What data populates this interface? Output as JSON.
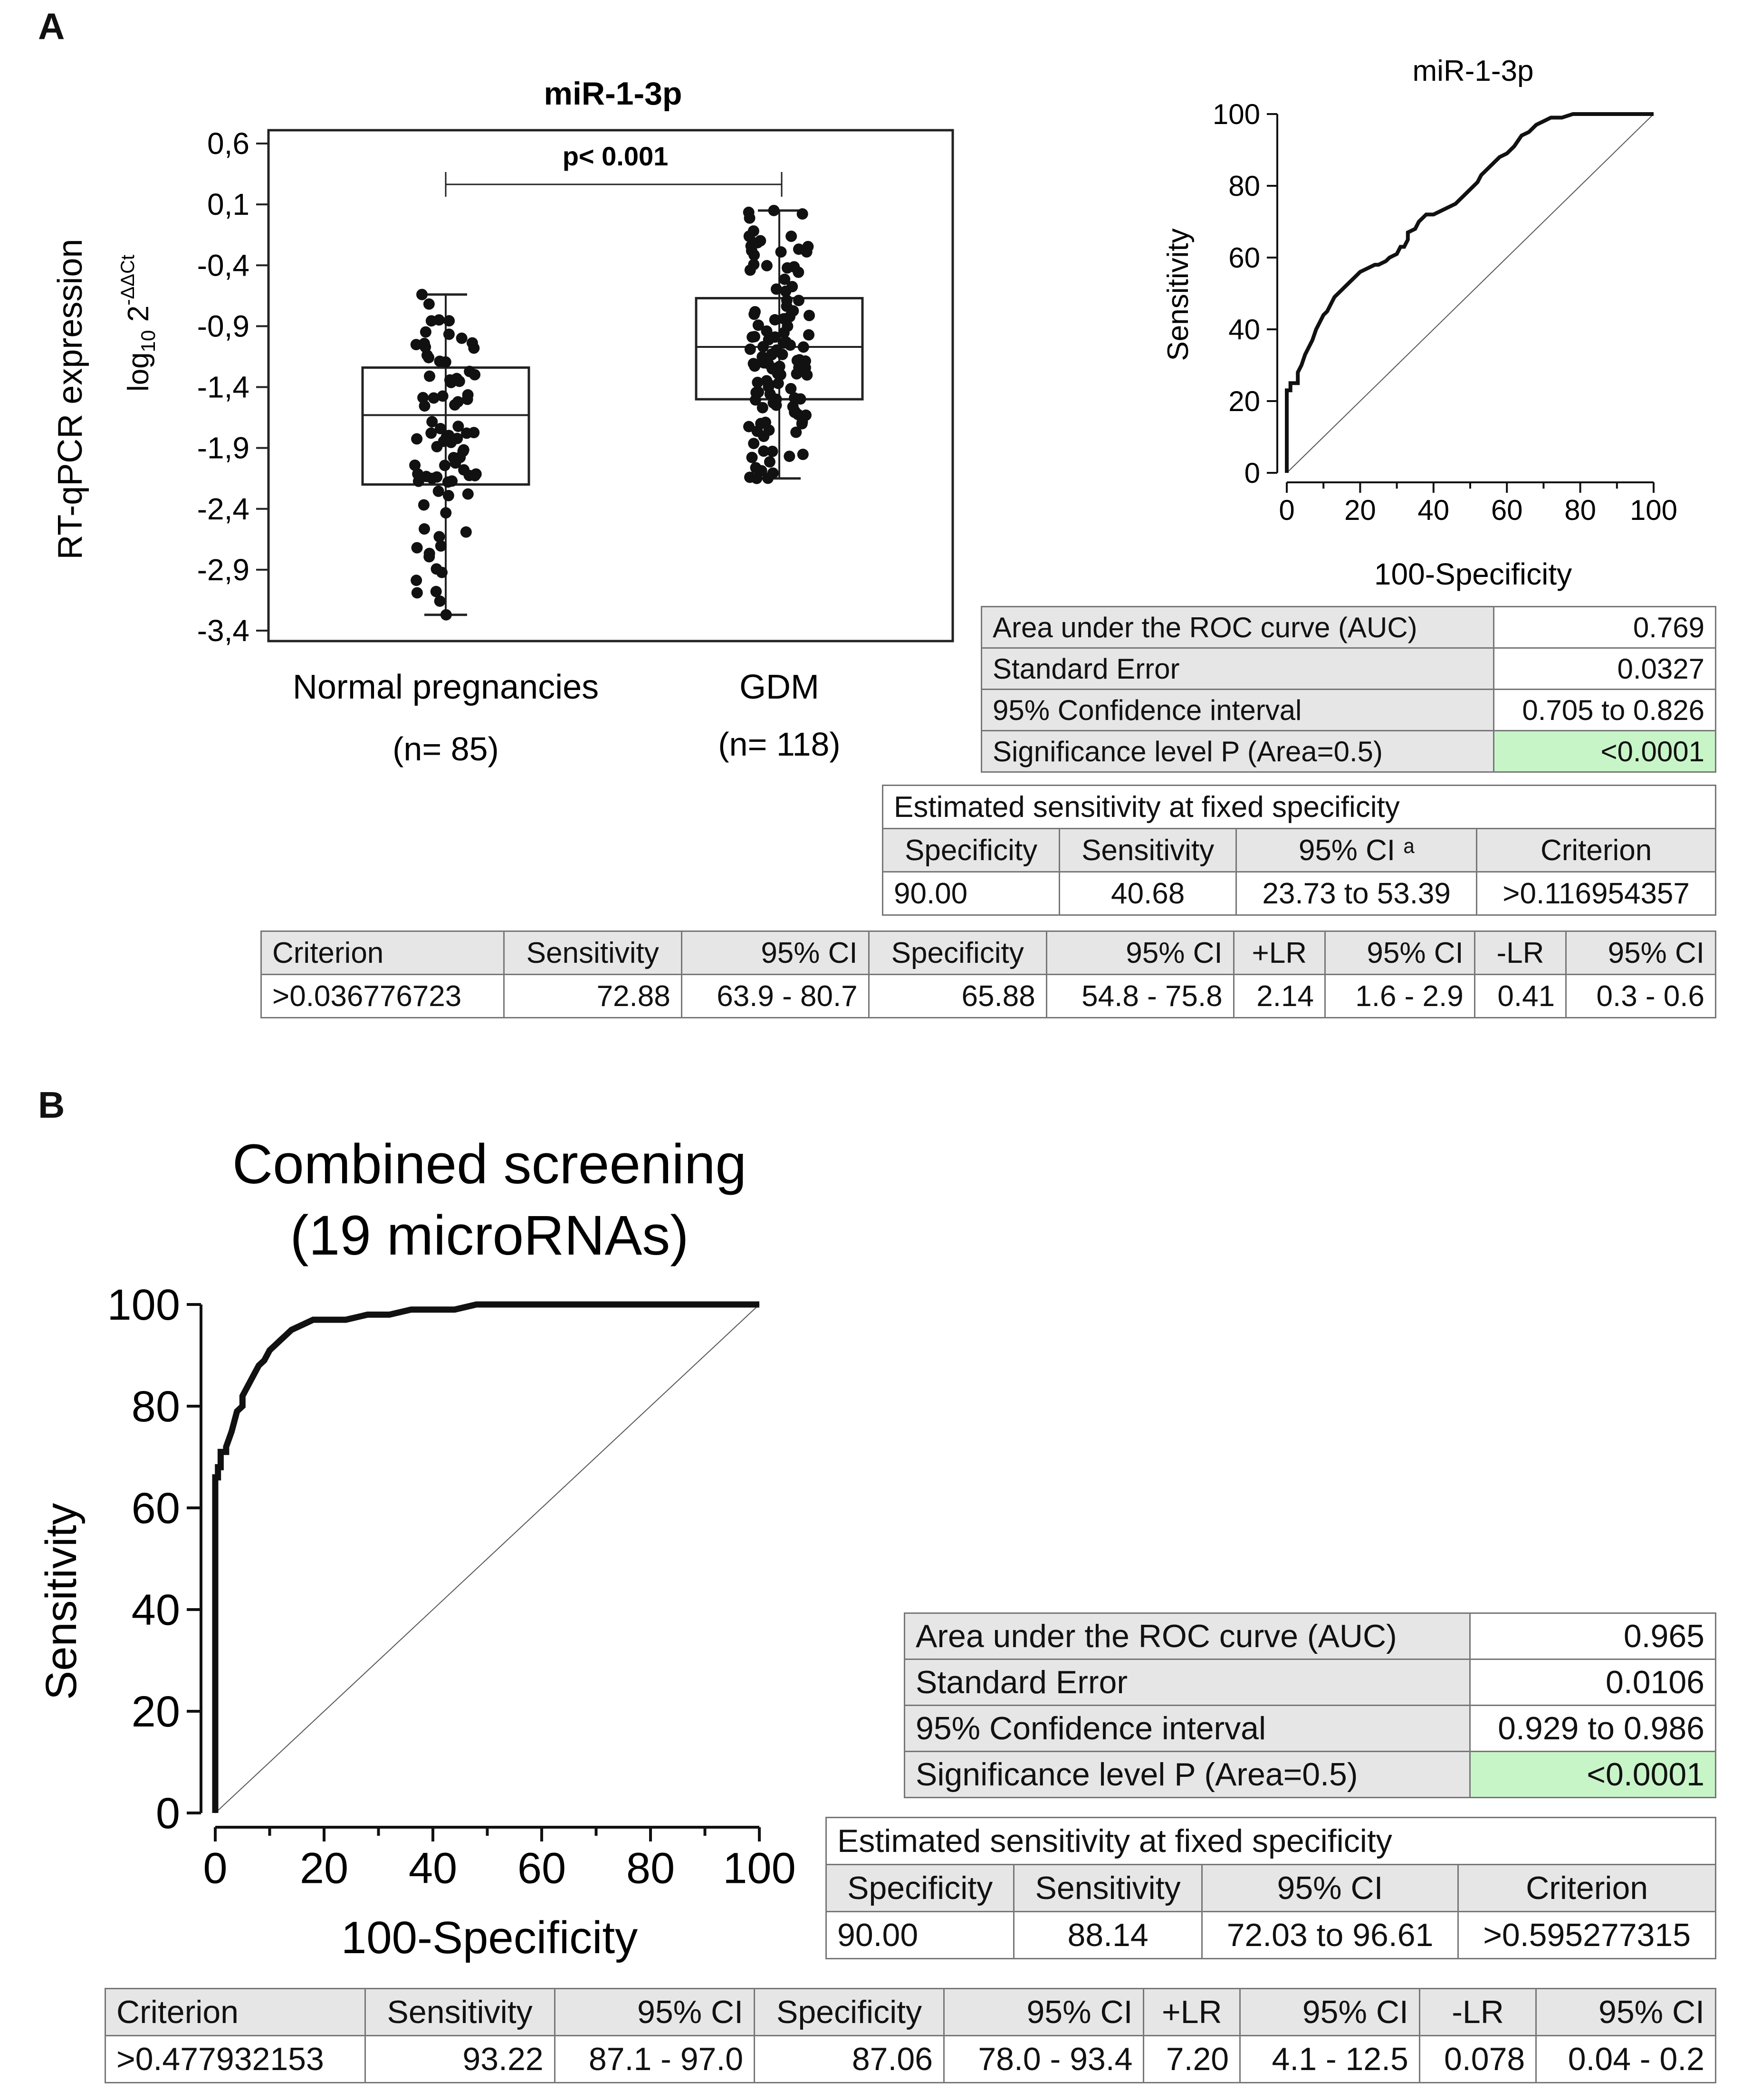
{
  "panels": {
    "a": "A",
    "b": "B"
  },
  "chart_data": [
    {
      "type": "box",
      "title": "miR-1-3p",
      "ylabel_main": "RT-qPCR expression",
      "ylabel_sub": "log10 2^-ΔΔCt",
      "yticks": [
        "0,6",
        "0,1",
        "-0,4",
        "-0,9",
        "-1,4",
        "-1,9",
        "-2,4",
        "-2,9",
        "-3,4"
      ],
      "ylim": [
        -3.4,
        0.6
      ],
      "annotation": "p< 0.001",
      "groups": [
        {
          "label": "Normal pregnancies",
          "n": "(n= 85)",
          "min": -3.27,
          "q1": -2.2,
          "median": -1.63,
          "q3": -1.24,
          "max": -0.64,
          "count": 85
        },
        {
          "label": "GDM",
          "n": "(n= 118)",
          "min": -2.15,
          "q1": -1.5,
          "median": -1.07,
          "q3": -0.67,
          "max": 0.05,
          "count": 118
        }
      ]
    },
    {
      "type": "line",
      "title": "miR-1-3p",
      "xlabel": "100-Specificity",
      "ylabel": "Sensitivity",
      "xticks": [
        "0",
        "20",
        "40",
        "60",
        "80",
        "100"
      ],
      "yticks": [
        "0",
        "20",
        "40",
        "60",
        "80",
        "100"
      ],
      "xlim": [
        0,
        100
      ],
      "ylim": [
        0,
        100
      ],
      "x": [
        0,
        0,
        1,
        1,
        3,
        3,
        4,
        5,
        6,
        7,
        8,
        9,
        10,
        11,
        12,
        13,
        14,
        15,
        16,
        18,
        20,
        22,
        24,
        25,
        27,
        28,
        30,
        31,
        32,
        33,
        33,
        35,
        36,
        38,
        39,
        40,
        42,
        44,
        46,
        48,
        50,
        52,
        53,
        55,
        58,
        60,
        62,
        64,
        66,
        68,
        70,
        72,
        75,
        78,
        82,
        86,
        90,
        94,
        100
      ],
      "y": [
        0,
        23,
        23,
        25,
        25,
        28,
        30,
        33,
        35,
        37,
        40,
        42,
        44,
        45,
        47,
        49,
        50,
        51,
        52,
        54,
        56,
        57,
        58,
        58,
        59,
        60,
        61,
        63,
        63,
        65,
        67,
        68,
        70,
        72,
        72,
        72,
        73,
        74,
        75,
        77,
        79,
        81,
        83,
        85,
        88,
        89,
        91,
        94,
        95,
        97,
        98,
        99,
        99,
        100,
        100,
        100,
        100,
        100,
        100
      ],
      "reference_line": true
    },
    {
      "type": "line",
      "title": "Combined screening",
      "title2": "(19 microRNAs)",
      "xlabel": "100-Specificity",
      "ylabel": "Sensitivity",
      "xticks": [
        "0",
        "20",
        "40",
        "60",
        "80",
        "100"
      ],
      "yticks": [
        "0",
        "20",
        "40",
        "60",
        "80",
        "100"
      ],
      "xlim": [
        0,
        100
      ],
      "ylim": [
        0,
        100
      ],
      "x": [
        0,
        0,
        0.5,
        0.5,
        1,
        1,
        2,
        2,
        3,
        4,
        5,
        5,
        6,
        7,
        8,
        9,
        10,
        11,
        12,
        13,
        14,
        16,
        18,
        20,
        24,
        28,
        32,
        36,
        40,
        44,
        48,
        52,
        56,
        60,
        70,
        80,
        90,
        100
      ],
      "y": [
        0,
        66,
        66,
        68,
        68,
        71,
        71,
        72,
        75,
        79,
        80,
        82,
        84,
        86,
        88,
        89,
        91,
        92,
        93,
        94,
        95,
        96,
        97,
        97,
        97,
        98,
        98,
        99,
        99,
        99,
        100,
        100,
        100,
        100,
        100,
        100,
        100,
        100
      ],
      "reference_line": true
    }
  ],
  "tables": {
    "a_auc": {
      "rows": [
        {
          "label": "Area under the ROC curve (AUC)",
          "value": "0.769"
        },
        {
          "label": "Standard Error",
          "value": "0.0327"
        },
        {
          "label": "95% Confidence interval",
          "value": "0.705 to 0.826"
        },
        {
          "label": "Significance level P (Area=0.5)",
          "value": "<0.0001"
        }
      ]
    },
    "a_fixed": {
      "title": "Estimated sensitivity at fixed specificity",
      "headers": [
        "Specificity",
        "Sensitivity",
        "95% CI ᵃ",
        "Criterion"
      ],
      "values": [
        "90.00",
        "40.68",
        "23.73 to 53.39",
        ">0.116954357"
      ]
    },
    "a_crit": {
      "headers": [
        "Criterion",
        "Sensitivity",
        "95% CI",
        "Specificity",
        "95% CI",
        "+LR",
        "95% CI",
        "-LR",
        "95% CI"
      ],
      "values": [
        ">0.036776723",
        "72.88",
        "63.9 - 80.7",
        "65.88",
        "54.8 - 75.8",
        "2.14",
        "1.6 - 2.9",
        "0.41",
        "0.3 - 0.6"
      ]
    },
    "b_auc": {
      "rows": [
        {
          "label": "Area under the ROC curve (AUC)",
          "value": "0.965"
        },
        {
          "label": "Standard Error",
          "value": "0.0106"
        },
        {
          "label": "95% Confidence interval",
          "value": "0.929 to 0.986"
        },
        {
          "label": "Significance level P (Area=0.5)",
          "value": "<0.0001"
        }
      ]
    },
    "b_fixed": {
      "title": "Estimated sensitivity at fixed specificity",
      "headers": [
        "Specificity",
        "Sensitivity",
        "95% CI",
        "Criterion"
      ],
      "values": [
        "90.00",
        "88.14",
        "72.03 to 96.61",
        ">0.595277315"
      ]
    },
    "b_crit": {
      "headers": [
        "Criterion",
        "Sensitivity",
        "95% CI",
        "Specificity",
        "95% CI",
        "+LR",
        "95% CI",
        "-LR",
        "95% CI"
      ],
      "values": [
        ">0.477932153",
        "93.22",
        "87.1 - 97.0",
        "87.06",
        "78.0 - 93.4",
        "7.20",
        "4.1 - 12.5",
        "0.078",
        "0.04 - 0.2"
      ]
    }
  }
}
